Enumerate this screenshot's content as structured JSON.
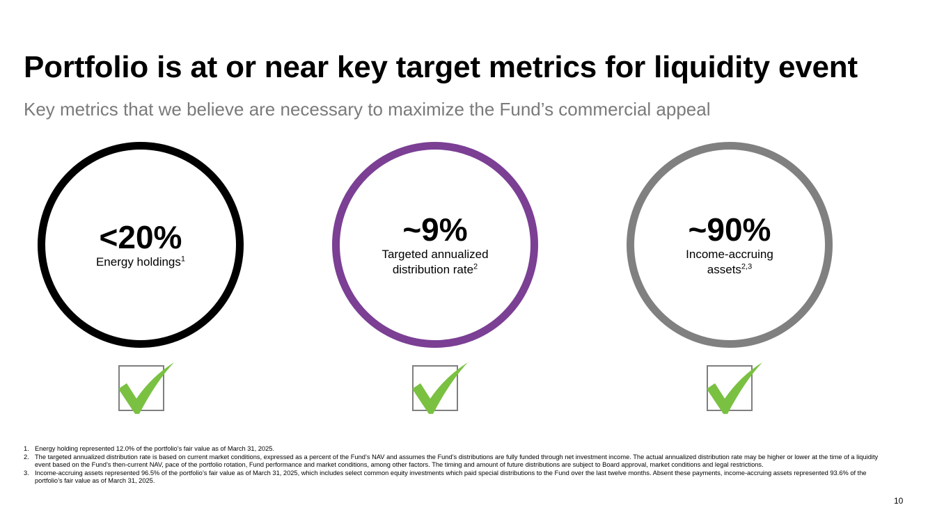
{
  "header": {
    "title": "Portfolio is at or near key target metrics for liquidity event",
    "subtitle": "Key metrics that we believe are necessary to maximize the Fund’s commercial appeal"
  },
  "metrics": [
    {
      "value": "<20%",
      "label": "Energy holdings",
      "footnote_ref": "1",
      "ring_color": "#000000",
      "checked": true
    },
    {
      "value": "~9%",
      "label": "Targeted annualized distribution rate",
      "footnote_ref": "2",
      "ring_color": "#7b3f94",
      "checked": true
    },
    {
      "value": "~90%",
      "label": "Income-accruing assets",
      "footnote_ref": "2,3",
      "ring_color": "#808080",
      "checked": true
    }
  ],
  "colors": {
    "check": "#7ac142",
    "checkbox_border": "#7f7f7f",
    "subtitle": "#7a7a7a"
  },
  "footnotes": [
    {
      "num": "1.",
      "text": "Energy holding represented 12.0% of the portfolio’s fair value as of March 31, 2025."
    },
    {
      "num": "2.",
      "text": "The targeted annualized distribution rate is based on current market conditions, expressed as a percent of the Fund’s NAV and assumes the Fund’s distributions are fully funded through net investment income. The actual annualized distribution rate may be higher or lower at the time of a liquidity event based on the Fund’s then-current NAV, pace of the portfolio rotation, Fund performance and market conditions, among other factors. The timing and amount of future distributions are subject to Board approval, market conditions and legal restrictions."
    },
    {
      "num": "3.",
      "text": "Income-accruing assets represented 96.5% of the portfolio’s fair value as of March 31, 2025, which includes select common equity investments which paid special distributions to the Fund over the last twelve months. Absent these payments, income-accruing assets represented 93.6% of the portfolio’s fair value as of March 31, 2025."
    }
  ],
  "page_number": "10"
}
